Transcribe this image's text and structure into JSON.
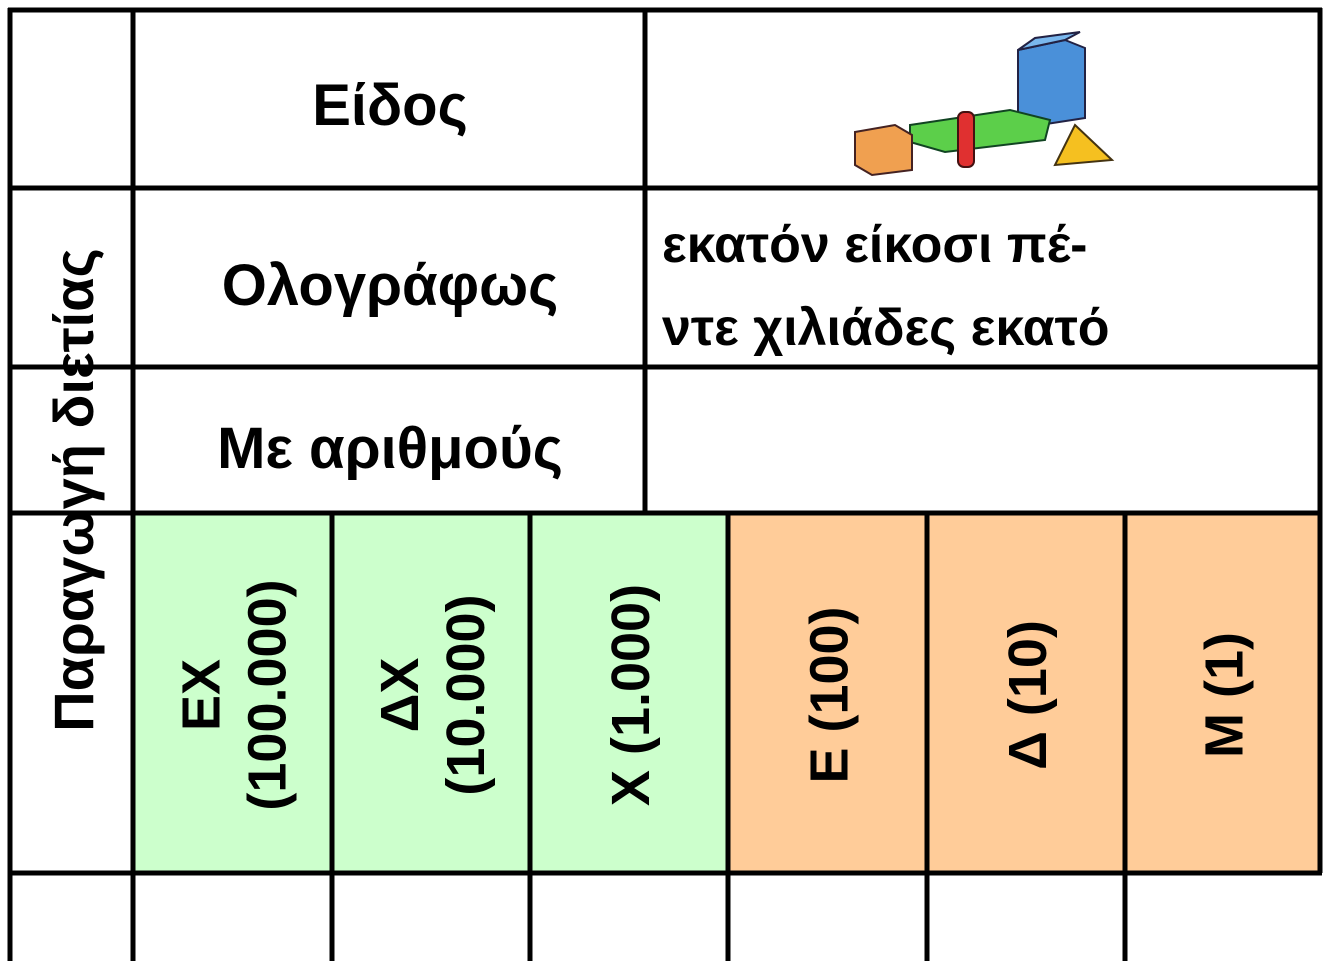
{
  "side_label": "Παραγωγή διετίας",
  "rows": [
    {
      "label": "Είδος"
    },
    {
      "label": "Ολογράφως",
      "value_lines": [
        "εκατόν είκοσι πέ-",
        "ντε χιλιάδες εκατό"
      ]
    },
    {
      "label": "Με αριθμούς"
    }
  ],
  "place_values": [
    {
      "lines": [
        "ΕΧ",
        "(100.000)"
      ],
      "color": "#ccffcc"
    },
    {
      "lines": [
        "ΔΧ",
        "(10.000)"
      ],
      "color": "#ccffcc"
    },
    {
      "lines": [
        "Χ (1.000)"
      ],
      "color": "#ccffcc"
    },
    {
      "lines": [
        "Ε (100)"
      ],
      "color": "#ffcc99"
    },
    {
      "lines": [
        "Δ (10)"
      ],
      "color": "#ffcc99"
    },
    {
      "lines": [
        "Μ (1)"
      ],
      "color": "#ffcc99"
    }
  ]
}
